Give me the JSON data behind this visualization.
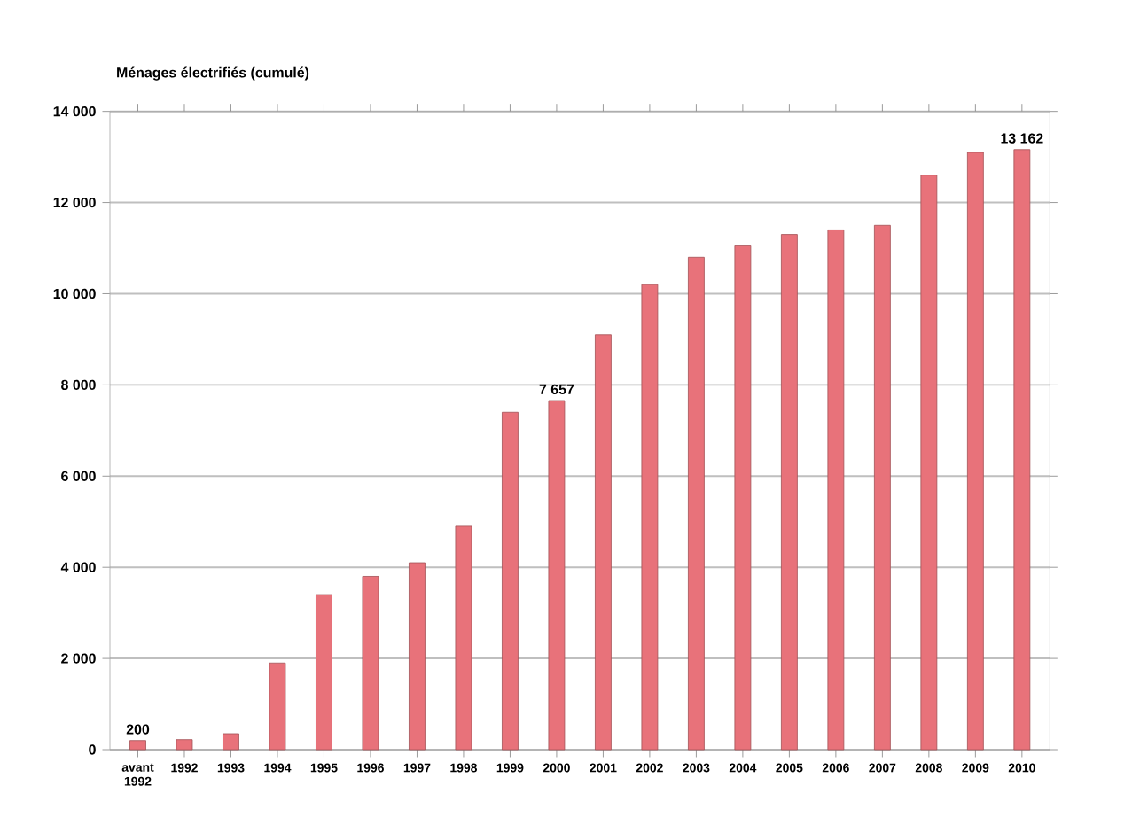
{
  "chart_data": {
    "type": "bar",
    "title": "Ménages électrifiés (cumulé)",
    "categories": [
      "avant 1992",
      "1992",
      "1993",
      "1994",
      "1995",
      "1996",
      "1997",
      "1998",
      "1999",
      "2000",
      "2001",
      "2002",
      "2003",
      "2004",
      "2005",
      "2006",
      "2007",
      "2008",
      "2009",
      "2010"
    ],
    "values": [
      200,
      220,
      350,
      1900,
      3400,
      3800,
      4100,
      4900,
      7400,
      7657,
      9100,
      10200,
      10800,
      11050,
      11300,
      11400,
      11500,
      12600,
      13100,
      13162
    ],
    "value_labels": [
      "200",
      null,
      null,
      null,
      null,
      null,
      null,
      null,
      null,
      "7 657",
      null,
      null,
      null,
      null,
      null,
      null,
      null,
      null,
      null,
      "13 162"
    ],
    "color": "#e8727a",
    "ylim": [
      0,
      14000
    ],
    "yticks": [
      0,
      {
        "value": 2000,
        "label": "2 000"
      },
      {
        "value": 4000,
        "label": "4 000"
      },
      {
        "value": 6000,
        "label": "6 000"
      },
      {
        "value": 8000,
        "label": "8 000"
      },
      {
        "value": 10000,
        "label": "10 000"
      },
      {
        "value": 12000,
        "label": "12 000"
      },
      {
        "value": 14000,
        "label": "14 000"
      }
    ],
    "grid": "y"
  }
}
